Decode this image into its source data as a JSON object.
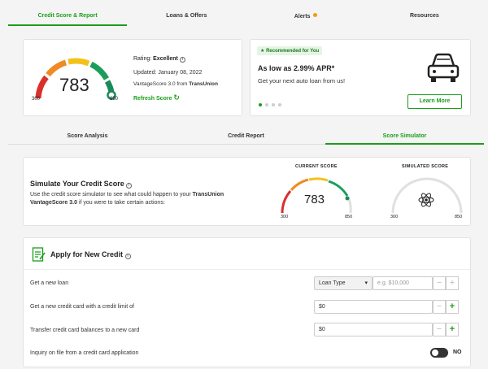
{
  "tabs": [
    {
      "label": "Credit Score & Report",
      "active": true
    },
    {
      "label": "Loans & Offers"
    },
    {
      "label": "Alerts",
      "dot": true
    },
    {
      "label": "Resources"
    }
  ],
  "score_card": {
    "score": "783",
    "min": "300",
    "max": "850",
    "rating_label": "Rating:",
    "rating_value": "Excellent",
    "updated": "Updated: January 08, 2022",
    "source_prefix": "VantageScore 3.0 from",
    "source_bureau": "TransUnion",
    "refresh_label": "Refresh Score"
  },
  "promo": {
    "badge": "Recommended for You",
    "headline": "As low as 2.99% APR*",
    "subtext": "Get your next auto loan from us!",
    "button": "Learn More",
    "icon": "car-icon"
  },
  "subtabs": [
    {
      "label": "Score Analysis"
    },
    {
      "label": "Credit Report"
    },
    {
      "label": "Score Simulator",
      "active": true
    }
  ],
  "simulator": {
    "title": "Simulate Your Credit Score",
    "desc_1": "Use the credit score simulator to see what could happen to your",
    "desc_bold": "TransUnion VantageScore 3.0",
    "desc_2": "if you were to take certain actions:",
    "current_label": "CURRENT SCORE",
    "current_score": "783",
    "simulated_label": "SIMULATED SCORE",
    "min": "300",
    "max": "850"
  },
  "apply": {
    "title": "Apply for New Credit",
    "rows": {
      "loan_label": "Get a new loan",
      "loan_type": "Loan Type",
      "loan_placeholder": "e.g. $10,000",
      "card_label": "Get a new credit card with a credit limit of",
      "card_value": "$0",
      "transfer_label": "Transfer credit card balances to a new card",
      "transfer_value": "$0",
      "inquiry_label": "Inquiry on file from a credit card application",
      "inquiry_toggle": "NO"
    }
  },
  "colors": {
    "accent": "#1a9e1a",
    "alert_dot": "#f39c12"
  }
}
